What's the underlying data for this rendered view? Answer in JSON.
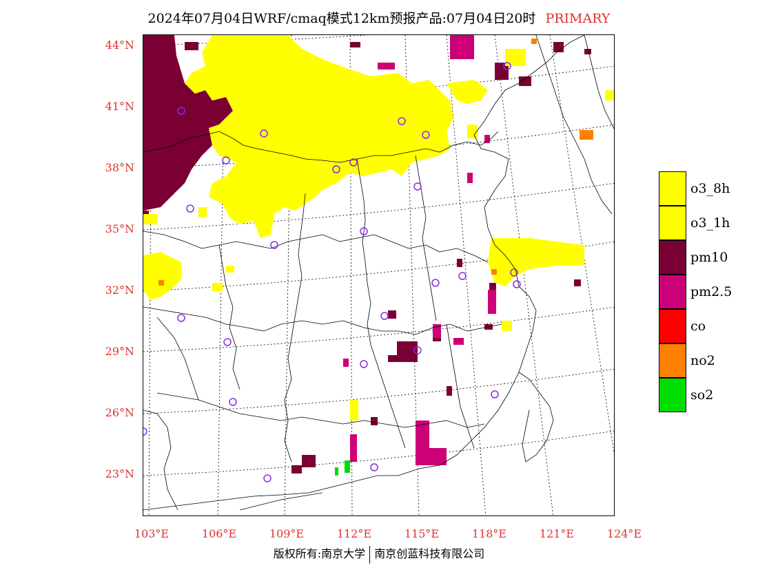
{
  "title": {
    "main": "2024年07月04日WRF/cmaq模式12km预报产品:07月04日20时",
    "tag": "PRIMARY"
  },
  "lat_labels": [
    "44°N",
    "41°N",
    "38°N",
    "35°N",
    "32°N",
    "29°N",
    "26°N",
    "23°N"
  ],
  "lon_labels": [
    "103°E",
    "106°E",
    "109°E",
    "112°E",
    "115°E",
    "118°E",
    "121°E",
    "124°E"
  ],
  "legend": [
    {
      "label": "o3_8h",
      "color": "#ffff00"
    },
    {
      "label": "o3_1h",
      "color": "#ffff00"
    },
    {
      "label": "pm10",
      "color": "#7a0033"
    },
    {
      "label": "pm2.5",
      "color": "#cc0077"
    },
    {
      "label": "co",
      "color": "#ff0000"
    },
    {
      "label": "no2",
      "color": "#ff7f00"
    },
    {
      "label": "so2",
      "color": "#00dd00"
    }
  ],
  "footer": {
    "left": "版权所有:南京大学",
    "right": "南京创蓝科技有限公司"
  },
  "colors": {
    "accent_red": "#e03030",
    "station_marker": "#8a2be2"
  }
}
